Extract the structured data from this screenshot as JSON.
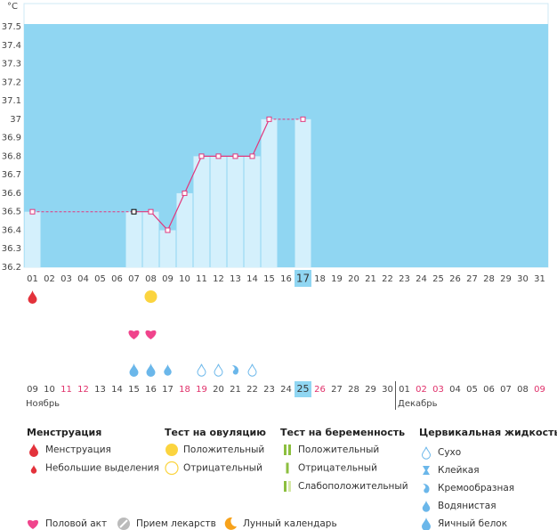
{
  "chart_data": {
    "type": "line",
    "ylabel": "°C",
    "categories": [
      "01",
      "02",
      "03",
      "04",
      "05",
      "06",
      "07",
      "08",
      "09",
      "10",
      "11",
      "12",
      "13",
      "14",
      "15",
      "16",
      "17",
      "18",
      "19",
      "20",
      "21",
      "22",
      "23",
      "24",
      "25",
      "26",
      "27",
      "28",
      "29",
      "30",
      "31"
    ],
    "values": [
      36.5,
      null,
      null,
      null,
      null,
      null,
      36.5,
      36.5,
      36.4,
      36.6,
      36.8,
      36.8,
      36.8,
      36.8,
      37.0,
      null,
      37.0,
      null,
      null,
      null,
      null,
      null,
      null,
      null,
      null,
      null,
      null,
      null,
      null,
      null,
      null
    ],
    "color": "#e2377c",
    "background_color": "#90d6f2",
    "bar_color": "#d4f0fc",
    "ylim": [
      36.2,
      37.5
    ],
    "yticks": [
      37.5,
      37.4,
      37.3,
      37.2,
      37.1,
      37,
      36.9,
      36.8,
      36.7,
      36.6,
      36.5,
      36.4,
      36.3,
      36.2
    ],
    "grid": false,
    "selected_day": "17",
    "highlighted_point": "07",
    "dates": [
      "09",
      "10",
      "11",
      "12",
      "13",
      "14",
      "15",
      "16",
      "17",
      "18",
      "19",
      "20",
      "21",
      "22",
      "23",
      "24",
      "25",
      "26",
      "27",
      "28",
      "29",
      "30",
      "01",
      "02",
      "03",
      "04",
      "05",
      "06",
      "07",
      "08",
      "09"
    ],
    "weekends": [
      false,
      false,
      true,
      true,
      false,
      false,
      false,
      false,
      false,
      true,
      true,
      false,
      false,
      false,
      false,
      false,
      false,
      true,
      false,
      false,
      false,
      false,
      false,
      true,
      true,
      false,
      false,
      false,
      false,
      false,
      true
    ],
    "weekend_color": "#e0306a",
    "months": [
      {
        "label": "Ноябрь",
        "start": 0
      },
      {
        "label": "Декабрь",
        "start": 22
      }
    ],
    "symbols": [
      {
        "day": "01",
        "icon": "drop-red"
      },
      {
        "day": "08",
        "icon": "circle-yellow"
      },
      {
        "day": "07",
        "icon": "heart"
      },
      {
        "day": "08",
        "icon": "heart"
      },
      {
        "day": "07",
        "icon": "drop-egg"
      },
      {
        "day": "08",
        "icon": "drop-egg"
      },
      {
        "day": "09",
        "icon": "drop-watery"
      },
      {
        "day": "11",
        "icon": "drop-outline"
      },
      {
        "day": "12",
        "icon": "drop-outline"
      },
      {
        "day": "13",
        "icon": "drop-creamy"
      },
      {
        "day": "14",
        "icon": "drop-outline"
      }
    ],
    "legend": [
      {
        "title": "Менструация",
        "items": [
          {
            "label": "Менструация",
            "icon": "drop-red"
          },
          {
            "label": "Небольшие выделения",
            "icon": "drop-red-small"
          }
        ]
      },
      {
        "title": "Тест на овуляцию",
        "items": [
          {
            "label": "Положительный",
            "icon": "circle-yellow"
          },
          {
            "label": "Отрицательный",
            "icon": "circle-yellow-outline"
          }
        ]
      },
      {
        "title": "Тест на беременность",
        "items": [
          {
            "label": "Положительный",
            "icon": "bars-green-2"
          },
          {
            "label": "Отрицательный",
            "icon": "bar-green-1"
          },
          {
            "label": "Слабоположительный",
            "icon": "bars-green-weak"
          }
        ]
      },
      {
        "title": "Цервикальная жидкость",
        "items": [
          {
            "label": "Сухо",
            "icon": "drop-outline"
          },
          {
            "label": "Клейкая",
            "icon": "hourglass"
          },
          {
            "label": "Кремообразная",
            "icon": "drop-creamy"
          },
          {
            "label": "Водянистая",
            "icon": "drop-watery"
          },
          {
            "label": "Яичный белок",
            "icon": "drop-egg"
          }
        ]
      }
    ],
    "legend_extra": [
      {
        "label": "Половой акт",
        "icon": "heart"
      },
      {
        "label": "Прием лекарств",
        "icon": "pill"
      },
      {
        "label": "Лунный календарь",
        "icon": "moon"
      }
    ]
  }
}
